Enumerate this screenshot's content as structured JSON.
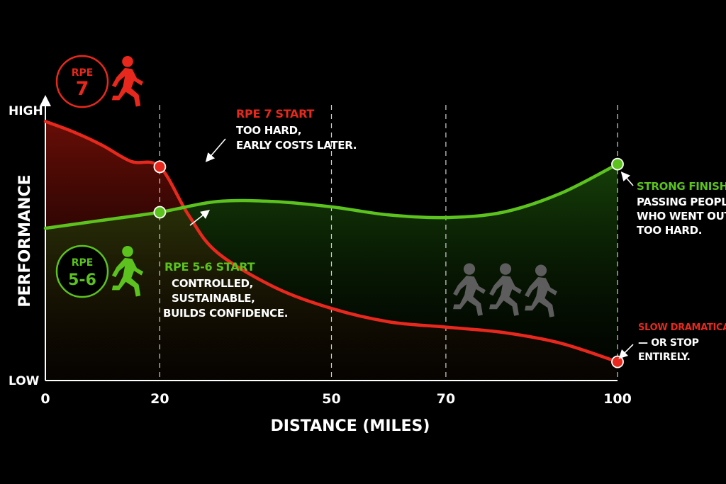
{
  "chart_data": {
    "type": "line",
    "xlabel": "DISTANCE (MILES)",
    "ylabel": "PERFORMANCE",
    "x_ticks": [
      "0",
      "20",
      "50",
      "70",
      "100"
    ],
    "xlim": [
      0,
      100
    ],
    "y_ticks": {
      "high": "HIGH",
      "low": "LOW"
    },
    "ylim": [
      0,
      1
    ],
    "vlines": [
      20,
      50,
      70,
      100
    ],
    "series": [
      {
        "name": "RPE 7",
        "color": "#e8281c",
        "points": [
          [
            0,
            0.97
          ],
          [
            5,
            0.93
          ],
          [
            10,
            0.88
          ],
          [
            15,
            0.82
          ],
          [
            20,
            0.8
          ],
          [
            25,
            0.62
          ],
          [
            30,
            0.48
          ],
          [
            40,
            0.35
          ],
          [
            50,
            0.27
          ],
          [
            60,
            0.22
          ],
          [
            70,
            0.2
          ],
          [
            80,
            0.18
          ],
          [
            90,
            0.14
          ],
          [
            100,
            0.07
          ]
        ],
        "markers": [
          20,
          100
        ]
      },
      {
        "name": "RPE 5-6",
        "color": "#5cc21e",
        "points": [
          [
            0,
            0.57
          ],
          [
            10,
            0.6
          ],
          [
            20,
            0.63
          ],
          [
            30,
            0.67
          ],
          [
            40,
            0.67
          ],
          [
            50,
            0.65
          ],
          [
            60,
            0.62
          ],
          [
            70,
            0.61
          ],
          [
            80,
            0.63
          ],
          [
            90,
            0.7
          ],
          [
            100,
            0.81
          ]
        ],
        "markers": [
          20,
          100
        ]
      }
    ],
    "badges": [
      {
        "line1": "RPE",
        "line2": "7",
        "color": "#e8281c",
        "icon": "runner-icon"
      },
      {
        "line1": "RPE",
        "line2": "5-6",
        "color": "#5cc21e",
        "icon": "runner-icon"
      }
    ],
    "annotations": [
      {
        "title": "RPE 7 START",
        "title_color": "#e8281c",
        "lines": [
          "TOO HARD,",
          "EARLY COSTS LATER."
        ]
      },
      {
        "title": "RPE 5-6 START",
        "title_color": "#5cc21e",
        "lines": [
          "CONTROLLED,",
          "SUSTAINABLE,",
          "BUILDS CONFIDENCE."
        ]
      },
      {
        "title": "STRONG FINISH.",
        "title_color": "#5cc21e",
        "lines": [
          "PASSING PEOPLE",
          "WHO WENT OUT",
          "TOO HARD."
        ]
      },
      {
        "title": "SLOW DRAMATICALLY",
        "title_color": "#e8281c",
        "lines": [
          "— OR STOP",
          "ENTIRELY."
        ]
      }
    ],
    "grid": false
  }
}
